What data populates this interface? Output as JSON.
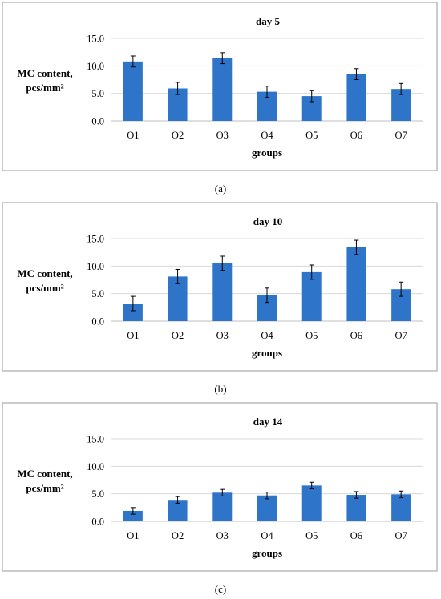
{
  "chart_data": [
    {
      "type": "bar",
      "panel_label": "(a)",
      "title": "day 5",
      "ylabel_line1": "MC content,",
      "ylabel_line2": "pcs/mm²",
      "xlabel": "groups",
      "categories": [
        "O1",
        "O2",
        "O3",
        "O4",
        "O5",
        "O6",
        "O7"
      ],
      "values": [
        10.8,
        5.9,
        11.4,
        5.3,
        4.5,
        8.5,
        5.8
      ],
      "errors": [
        1.0,
        1.1,
        1.0,
        1.0,
        1.0,
        1.0,
        1.0
      ],
      "ylim": [
        0,
        15
      ],
      "yticks": [
        "0.0",
        "5.0",
        "10.0",
        "15.0"
      ],
      "grid": true,
      "bar_color": "#2e75c9"
    },
    {
      "type": "bar",
      "panel_label": "(b)",
      "title": "day 10",
      "ylabel_line1": "MC content,",
      "ylabel_line2": "pcs/mm²",
      "xlabel": "groups",
      "categories": [
        "O1",
        "O2",
        "O3",
        "O4",
        "O5",
        "O6",
        "O7"
      ],
      "values": [
        3.2,
        8.1,
        10.5,
        4.7,
        8.9,
        13.4,
        5.8
      ],
      "errors": [
        1.3,
        1.3,
        1.3,
        1.3,
        1.3,
        1.3,
        1.3
      ],
      "ylim": [
        0,
        15
      ],
      "yticks": [
        "0.0",
        "5.0",
        "10.0",
        "15.0"
      ],
      "grid": true,
      "bar_color": "#2e75c9"
    },
    {
      "type": "bar",
      "panel_label": "(c)",
      "title": "day 14",
      "ylabel_line1": "MC content,",
      "ylabel_line2": "pcs/mm²",
      "xlabel": "groups",
      "categories": [
        "O1",
        "O2",
        "O3",
        "O4",
        "O5",
        "O6",
        "O7"
      ],
      "values": [
        1.9,
        3.9,
        5.2,
        4.7,
        6.5,
        4.8,
        4.9
      ],
      "errors": [
        0.6,
        0.6,
        0.6,
        0.6,
        0.6,
        0.6,
        0.6
      ],
      "ylim": [
        0,
        15
      ],
      "yticks": [
        "0.0",
        "5.0",
        "10.0",
        "15.0"
      ],
      "grid": true,
      "bar_color": "#2e75c9"
    }
  ]
}
